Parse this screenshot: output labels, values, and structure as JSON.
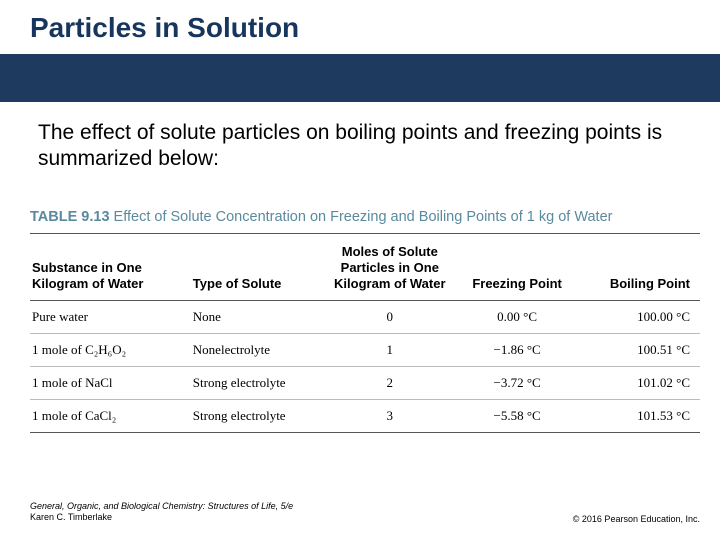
{
  "title": "Particles in Solution",
  "title_color": "#16365d",
  "bar_color": "#1f3a5f",
  "intro": "The effect of solute particles on boiling points and freezing points is summarized below:",
  "table": {
    "caption_label": "TABLE 9.13",
    "caption_text": "Effect of Solute Concentration on Freezing and Boiling Points of 1 kg of Water",
    "caption_color": "#5a8a9e",
    "columns": [
      "Substance in One Kilogram of Water",
      "Type of Solute",
      "Moles of Solute Particles in One Kilogram of Water",
      "Freezing Point",
      "Boiling Point"
    ],
    "rows": [
      [
        "Pure water",
        "None",
        "0",
        "0.00 °C",
        "100.00 °C"
      ],
      [
        "1 mole of C₂H₆O₂",
        "Nonelectrolyte",
        "1",
        "−1.86 °C",
        "100.51 °C"
      ],
      [
        "1 mole of NaCl",
        "Strong electrolyte",
        "2",
        "−3.72 °C",
        "101.02 °C"
      ],
      [
        "1 mole of CaCl₂",
        "Strong electrolyte",
        "3",
        "−5.58 °C",
        "101.53 °C"
      ]
    ]
  },
  "footer": {
    "book": "General, Organic, and Biological Chemistry: Structures of Life, 5/e",
    "author": "Karen C. Timberlake",
    "copyright": "© 2016 Pearson Education, Inc."
  }
}
